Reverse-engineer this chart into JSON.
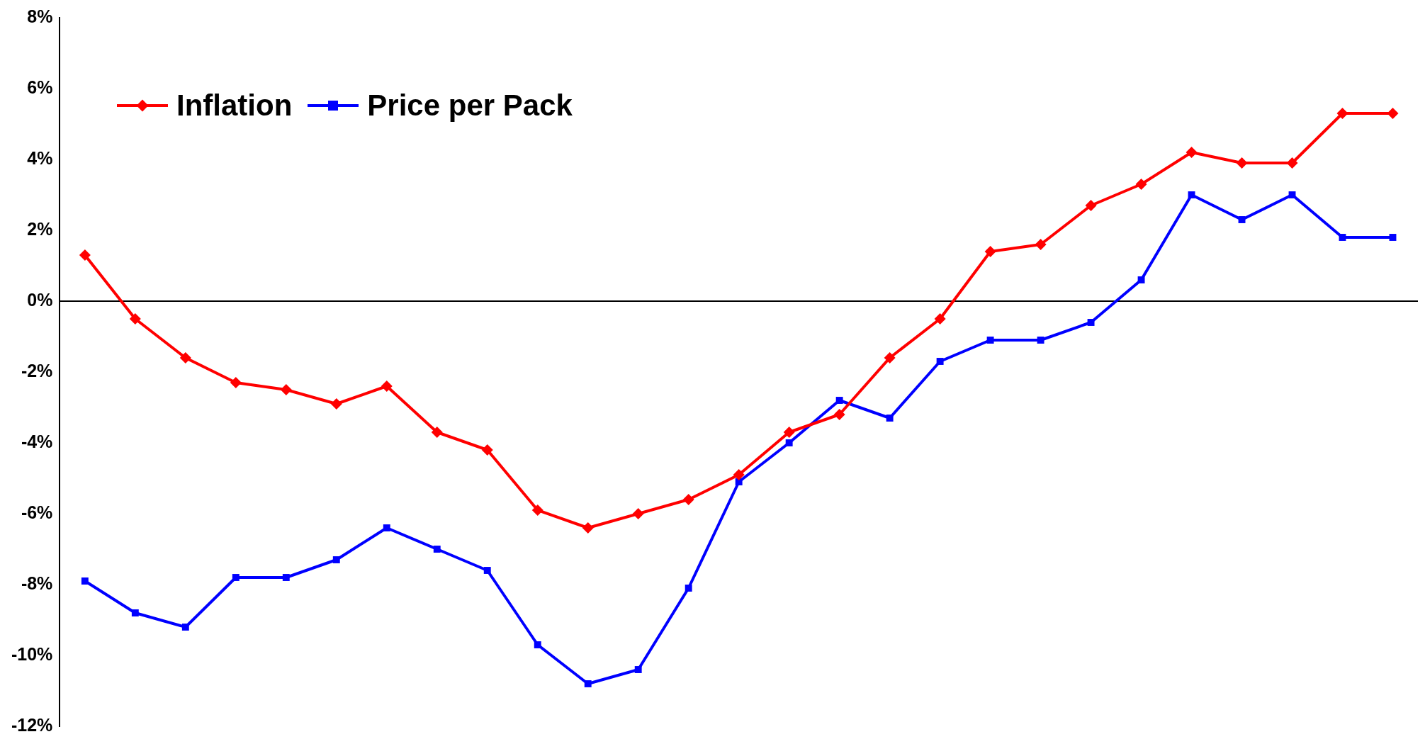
{
  "chart_data": {
    "type": "line",
    "categories": [
      null,
      null,
      null,
      null,
      null,
      null,
      null,
      null,
      null,
      null,
      null,
      null,
      null,
      null,
      null,
      null,
      null,
      null,
      null,
      null,
      null,
      null,
      null,
      null,
      null,
      null,
      null
    ],
    "series": [
      {
        "name": "Inflation",
        "color": "#ff0000",
        "marker": "diamond",
        "values": [
          1.3,
          -0.5,
          -1.6,
          -2.3,
          -2.5,
          -2.9,
          -2.4,
          -3.7,
          -4.2,
          -5.9,
          -6.4,
          -6.0,
          -5.6,
          -4.9,
          -3.7,
          -3.2,
          -1.6,
          -0.5,
          1.4,
          1.6,
          2.7,
          3.3,
          4.2,
          3.9,
          3.9,
          5.3,
          5.3
        ]
      },
      {
        "name": "Price per Pack",
        "color": "#0000ff",
        "marker": "square",
        "values": [
          -7.9,
          -8.8,
          -9.2,
          -7.8,
          -7.8,
          -7.3,
          -6.4,
          -7.0,
          -7.6,
          -9.7,
          -10.8,
          -10.4,
          -8.1,
          -5.1,
          -4.0,
          -2.8,
          -3.3,
          -1.7,
          -1.1,
          -1.1,
          -0.6,
          0.6,
          3.0,
          2.3,
          3.0,
          1.8,
          1.8
        ]
      }
    ],
    "ylim": [
      -12,
      8
    ],
    "yticks": [
      {
        "value": -12,
        "label": "-12%"
      },
      {
        "value": -10,
        "label": "-10%"
      },
      {
        "value": -8,
        "label": "-8%"
      },
      {
        "value": -6,
        "label": "-6%"
      },
      {
        "value": -4,
        "label": "-4%"
      },
      {
        "value": -2,
        "label": "-2%"
      },
      {
        "value": 0,
        "label": "0%"
      },
      {
        "value": 2,
        "label": "2%"
      },
      {
        "value": 4,
        "label": "4%"
      },
      {
        "value": 6,
        "label": "6%"
      },
      {
        "value": 8,
        "label": "8%"
      }
    ],
    "ref_lines": [
      {
        "axis": "y",
        "value": 0,
        "color": "#000000"
      }
    ],
    "grid": false,
    "legend": "top left",
    "tick_labels": "y",
    "line_style": "solid"
  }
}
